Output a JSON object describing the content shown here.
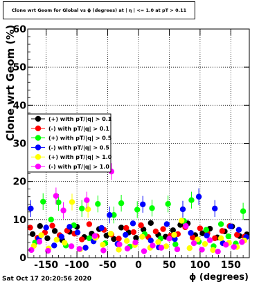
{
  "chart_data": {
    "type": "scatter",
    "title": "Clone wrt Geom for Global vs ϕ (degrees) at | η | <= 1.0 at pT > 0.11",
    "xlabel": "ϕ (degrees)",
    "ylabel": "Clone wrt Geom (%)",
    "xlim": [
      -180,
      180
    ],
    "ylim": [
      0,
      60
    ],
    "xticks": [
      -150,
      -100,
      -50,
      0,
      50,
      100,
      150
    ],
    "yticks": [
      0,
      10,
      20,
      30,
      40,
      50,
      60
    ],
    "grid": true,
    "legend_position": "left",
    "series": [
      {
        "name": "(+) with pT/|q| > 0.1",
        "color": "#000000",
        "x": [
          -172,
          -160,
          -148,
          -136,
          -124,
          -112,
          -100,
          -88,
          -76,
          -64,
          -52,
          -40,
          -28,
          -16,
          -4,
          8,
          20,
          32,
          44,
          56,
          68,
          80,
          92,
          104,
          116,
          128,
          140,
          152,
          164,
          176
        ],
        "y": [
          6.2,
          8.3,
          5.1,
          7.0,
          4.6,
          6.8,
          8.1,
          5.4,
          6.3,
          7.5,
          5.8,
          4.9,
          7.9,
          6.6,
          5.2,
          7.4,
          9.1,
          6.0,
          5.5,
          7.2,
          8.6,
          9.0,
          5.9,
          6.4,
          7.6,
          5.3,
          6.9,
          8.2,
          5.7,
          6.1
        ]
      },
      {
        "name": "(-) with pT/|q| > 0.1",
        "color": "#ff0000",
        "x": [
          -176,
          -164,
          -152,
          -140,
          -128,
          -116,
          -104,
          -92,
          -80,
          -68,
          -56,
          -44,
          -32,
          -20,
          -8,
          4,
          16,
          28,
          40,
          52,
          64,
          76,
          88,
          100,
          112,
          124,
          136,
          148,
          160,
          172
        ],
        "y": [
          7.9,
          5.2,
          6.6,
          8.4,
          5.9,
          7.1,
          6.3,
          4.8,
          8.8,
          5.6,
          7.3,
          6.1,
          5.0,
          7.8,
          6.7,
          8.5,
          5.4,
          6.9,
          7.5,
          5.8,
          6.2,
          8.0,
          5.3,
          7.7,
          6.4,
          5.1,
          7.0,
          8.3,
          6.0,
          5.5
        ]
      },
      {
        "name": "(+) with pT/|q| > 0.5",
        "color": "#00ff00",
        "x": [
          -168,
          -155,
          -142,
          -130,
          -118,
          -105,
          -92,
          -80,
          -66,
          -54,
          -40,
          -28,
          -14,
          -2,
          10,
          22,
          36,
          48,
          60,
          74,
          86,
          98,
          110,
          122,
          134,
          146,
          158,
          170
        ],
        "y": [
          4.0,
          14.7,
          10.0,
          14.5,
          3.2,
          8.5,
          12.9,
          5.1,
          14.1,
          3.8,
          11.2,
          14.3,
          2.9,
          12.6,
          6.2,
          13.0,
          5.0,
          14.1,
          3.5,
          9.6,
          15.1,
          4.2,
          7.3,
          3.0,
          8.8,
          5.6,
          3.7,
          12.2
        ]
      },
      {
        "name": "(-) with pT/|q| > 0.5",
        "color": "#0000ff",
        "x": [
          -175,
          -162,
          -150,
          -137,
          -125,
          -112,
          -99,
          -86,
          -73,
          -60,
          -47,
          -34,
          -21,
          -9,
          7,
          20,
          33,
          46,
          59,
          72,
          85,
          98,
          111,
          124,
          137,
          150,
          163,
          175
        ],
        "y": [
          12.9,
          5.0,
          7.9,
          3.2,
          5.5,
          8.1,
          6.6,
          2.6,
          4.3,
          7.8,
          11.2,
          3.6,
          6.0,
          9.0,
          14.0,
          4.5,
          2.7,
          8.8,
          4.9,
          12.7,
          6.5,
          16.0,
          5.8,
          12.9,
          3.8,
          8.2,
          7.3,
          5.4
        ]
      },
      {
        "name": "(+) with pT/|q| > 1.0",
        "color": "#ffff00",
        "x": [
          -170,
          -158,
          -146,
          -133,
          -120,
          -108,
          -95,
          -82,
          -70,
          -58,
          -45,
          -32,
          -19,
          -6,
          6,
          19,
          32,
          45,
          58,
          70,
          83,
          96,
          108,
          121,
          134,
          147,
          160,
          172
        ],
        "y": [
          3.1,
          5.9,
          2.4,
          4.7,
          3.9,
          14.6,
          2.2,
          12.7,
          5.2,
          3.4,
          6.3,
          2.1,
          4.4,
          3.3,
          5.5,
          2.6,
          4.1,
          3.0,
          6.0,
          9.7,
          2.5,
          4.8,
          3.6,
          2.0,
          5.1,
          3.9,
          2.8,
          4.5
        ]
      },
      {
        "name": "(-) with pT/|q| > 1.0",
        "color": "#ff00ff",
        "x": [
          -174,
          -161,
          -147,
          -134,
          -122,
          -109,
          -96,
          -84,
          -71,
          -57,
          -44,
          -31,
          -18,
          -5,
          9,
          23,
          37,
          50,
          63,
          77,
          90,
          103,
          116,
          129,
          142,
          155,
          168
        ],
        "y": [
          2.0,
          4.2,
          1.8,
          16.2,
          12.4,
          3.0,
          2.3,
          15.1,
          5.7,
          1.9,
          22.6,
          3.5,
          2.4,
          4.0,
          1.7,
          3.2,
          2.6,
          5.0,
          2.2,
          8.3,
          3.8,
          2.1,
          4.6,
          1.6,
          3.4,
          2.8,
          4.1
        ]
      }
    ]
  },
  "timestamp": "Sat Oct 17 20:20:56 2020"
}
